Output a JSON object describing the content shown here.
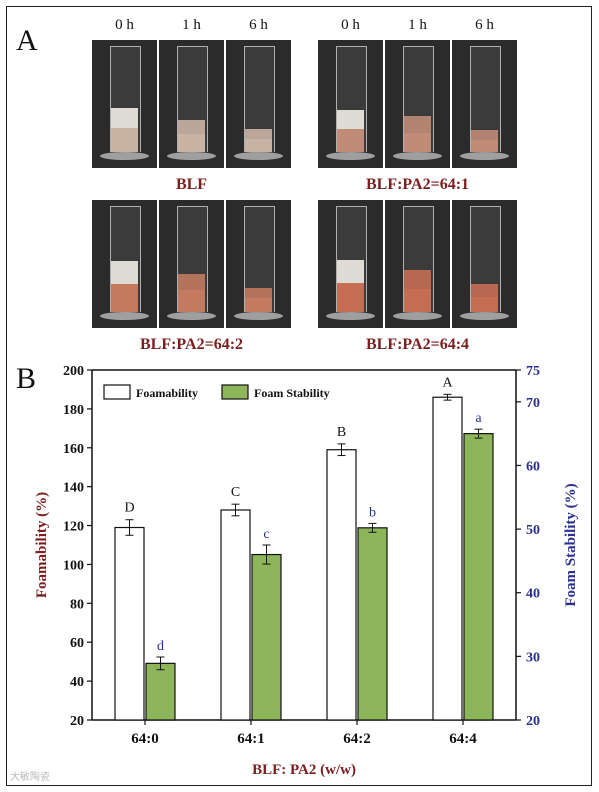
{
  "panel_a": {
    "letter": "A",
    "time_labels": [
      "0 h",
      "1 h",
      "6 h"
    ],
    "groups": [
      {
        "caption": "BLF",
        "tint": "#c9b4a4"
      },
      {
        "caption": "BLF:PA2=64:1",
        "tint": "#c08c77"
      },
      {
        "caption": "BLF:PA2=64:2",
        "tint": "#c47a5f"
      },
      {
        "caption": "BLF:PA2=64:4",
        "tint": "#c66e53"
      }
    ]
  },
  "panel_b": {
    "letter": "B"
  },
  "watermark": "大敏陶瓷",
  "colors": {
    "foamability_fill": "#ffffff",
    "foam_stability_fill": "#8db65a",
    "left_axis": "#7a1e1e",
    "right_axis": "#2b2f8f",
    "caption": "#7a1e1e"
  },
  "chart_data": {
    "type": "bar",
    "categories": [
      "64:0",
      "64:1",
      "64:2",
      "64:4"
    ],
    "xlabel": "BLF: PA2 (w/w)",
    "ylabel": "Foamability (%)",
    "y2label": "Foam Stability (%)",
    "ylim": [
      20,
      200
    ],
    "yticks": [
      20,
      40,
      60,
      80,
      100,
      120,
      140,
      160,
      180,
      200
    ],
    "y2lim": [
      20,
      75
    ],
    "y2ticks": [
      20,
      30,
      40,
      50,
      60,
      70,
      75
    ],
    "legend_placement": "top-left",
    "grid": false,
    "series": [
      {
        "name": "Foamability",
        "axis": "left",
        "values": [
          119,
          128,
          159,
          186
        ],
        "errors": [
          4,
          3,
          3,
          1.5
        ],
        "letters": [
          "D",
          "C",
          "B",
          "A"
        ]
      },
      {
        "name": "Foam Stability",
        "axis": "right",
        "values": [
          28.9,
          46,
          50.2,
          65
        ],
        "errors": [
          1,
          1.5,
          0.7,
          0.7
        ],
        "letters": [
          "d",
          "c",
          "b",
          "a"
        ]
      }
    ]
  }
}
